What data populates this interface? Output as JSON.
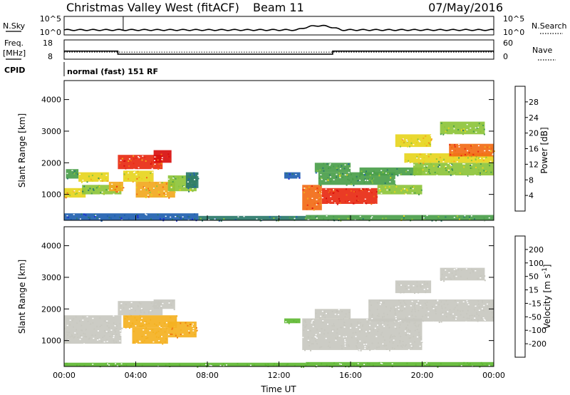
{
  "header": {
    "station": "Christmas Valley West (fitACF)",
    "beam": "Beam 11",
    "date": "07/May/2016"
  },
  "chart_data": [
    {
      "type": "line",
      "panel": "noise",
      "left_label": "N.Sky",
      "right_label": "N.Search",
      "left_ticks": [
        "10^5",
        "10^0"
      ],
      "right_ticks": [
        "10^5",
        "10^0"
      ],
      "series": [
        {
          "name": "N.Sky",
          "style": "solid"
        },
        {
          "name": "N.Search",
          "style": "dotted"
        }
      ]
    },
    {
      "type": "line",
      "panel": "frequency",
      "left_label": [
        "Freq.",
        "[MHz]"
      ],
      "right_label": "Nave",
      "left_ticks": [
        18,
        8
      ],
      "right_ticks": [
        60,
        0
      ],
      "freq_steps": [
        {
          "t": 0,
          "v": 12.2
        },
        {
          "t": 3.0,
          "v": 10.6
        },
        {
          "t": 15.0,
          "v": 12.2
        },
        {
          "t": 24,
          "v": 12.2
        }
      ],
      "nave_steps": [
        {
          "t": 0,
          "v": 22
        },
        {
          "t": 3.0,
          "v": 22
        },
        {
          "t": 15.0,
          "v": 22
        },
        {
          "t": 24,
          "v": 22
        }
      ],
      "series": [
        {
          "name": "Freq.",
          "style": "solid"
        },
        {
          "name": "Nave",
          "style": "dotted"
        }
      ]
    },
    {
      "type": "table",
      "panel": "cpid",
      "label": "CPID",
      "text": "normal (fast) 151 RF"
    },
    {
      "type": "heatmap",
      "panel": "power",
      "ylabel": "Slant Range [km]",
      "yticks": [
        1000,
        2000,
        3000,
        4000
      ],
      "ylim": [
        180,
        4600
      ],
      "colorbar_label": "Power [dB]",
      "colorbar_ticks": [
        4,
        8,
        12,
        16,
        20,
        24,
        28
      ],
      "colorbar_range": [
        0,
        32
      ],
      "colors": [
        "#1a2bd6",
        "#1f5fb0",
        "#2b7a6a",
        "#4a9e4a",
        "#8dc43a",
        "#e7d51e",
        "#f2a81f",
        "#f26b16",
        "#e82a12",
        "#d80e0e"
      ],
      "cells": [
        {
          "t0": 0.0,
          "t1": 1.2,
          "r0": 900,
          "r1": 1200,
          "v": 18
        },
        {
          "t0": 0.1,
          "t1": 0.8,
          "r0": 1500,
          "r1": 1800,
          "v": 12
        },
        {
          "t0": 0.8,
          "t1": 2.5,
          "r0": 1400,
          "r1": 1700,
          "v": 17
        },
        {
          "t0": 1.0,
          "t1": 3.2,
          "r0": 1000,
          "r1": 1300,
          "v": 13
        },
        {
          "t0": 2.5,
          "t1": 3.3,
          "r0": 1100,
          "r1": 1400,
          "v": 22
        },
        {
          "t0": 3.0,
          "t1": 5.5,
          "r0": 1800,
          "r1": 2250,
          "v": 26
        },
        {
          "t0": 3.3,
          "t1": 5.0,
          "r0": 1400,
          "r1": 1750,
          "v": 19
        },
        {
          "t0": 5.0,
          "t1": 6.0,
          "r0": 2000,
          "r1": 2400,
          "v": 29
        },
        {
          "t0": 4.0,
          "t1": 6.2,
          "r0": 900,
          "r1": 1400,
          "v": 20
        },
        {
          "t0": 5.8,
          "t1": 7.4,
          "r0": 1100,
          "r1": 1600,
          "v": 14
        },
        {
          "t0": 6.8,
          "t1": 7.5,
          "r0": 1200,
          "r1": 1700,
          "v": 8
        },
        {
          "t0": 0.0,
          "t1": 7.5,
          "r0": 180,
          "r1": 400,
          "v": 5
        },
        {
          "t0": 7.5,
          "t1": 13.5,
          "r0": 180,
          "r1": 320,
          "v": 9
        },
        {
          "t0": 12.3,
          "t1": 13.2,
          "r0": 1500,
          "r1": 1700,
          "v": 6
        },
        {
          "t0": 13.3,
          "t1": 14.4,
          "r0": 500,
          "r1": 1300,
          "v": 24
        },
        {
          "t0": 14.4,
          "t1": 17.5,
          "r0": 700,
          "r1": 1200,
          "v": 28
        },
        {
          "t0": 14.2,
          "t1": 18.5,
          "r0": 1300,
          "r1": 1700,
          "v": 12
        },
        {
          "t0": 14.0,
          "t1": 16.0,
          "r0": 1700,
          "r1": 2000,
          "v": 11
        },
        {
          "t0": 17.5,
          "t1": 20.0,
          "r0": 1000,
          "r1": 1300,
          "v": 15
        },
        {
          "t0": 16.5,
          "t1": 20.0,
          "r0": 1600,
          "r1": 1850,
          "v": 11
        },
        {
          "t0": 19.5,
          "t1": 24.0,
          "r0": 1600,
          "r1": 2000,
          "v": 14
        },
        {
          "t0": 19.0,
          "t1": 24.0,
          "r0": 2000,
          "r1": 2300,
          "v": 17
        },
        {
          "t0": 21.5,
          "t1": 24.0,
          "r0": 2200,
          "r1": 2600,
          "v": 24
        },
        {
          "t0": 18.5,
          "t1": 20.5,
          "r0": 2500,
          "r1": 2900,
          "v": 18
        },
        {
          "t0": 21.0,
          "t1": 23.5,
          "r0": 2900,
          "r1": 3300,
          "v": 14
        },
        {
          "t0": 13.5,
          "t1": 24.0,
          "r0": 180,
          "r1": 350,
          "v": 12
        }
      ]
    },
    {
      "type": "heatmap",
      "panel": "velocity",
      "ylabel": "Slant Range [km]",
      "yticks": [
        1000,
        2000,
        3000,
        4000
      ],
      "ylim": [
        180,
        4600
      ],
      "xticks": [
        "00:00",
        "04:00",
        "08:00",
        "12:00",
        "16:00",
        "20:00",
        "00:00"
      ],
      "xlabel": "Time UT",
      "colorbar_label": "Velocity [m s^-1]",
      "colorbar_ticks": [
        200,
        100,
        50,
        15,
        -15,
        -50,
        -100,
        -200
      ],
      "colors": [
        "#1a2bd6",
        "#2b4fb5",
        "#2c7f59",
        "#5fb833",
        "#c8c8c0",
        "#f4b121",
        "#f07c13",
        "#e84a10",
        "#d80e0e"
      ],
      "cells": [
        {
          "t0": 0.0,
          "t1": 3.2,
          "r0": 900,
          "r1": 1800,
          "v": 0
        },
        {
          "t0": 3.0,
          "t1": 5.5,
          "r0": 1800,
          "r1": 2250,
          "v": 0
        },
        {
          "t0": 3.3,
          "t1": 6.3,
          "r0": 1400,
          "r1": 1800,
          "v": -40
        },
        {
          "t0": 3.8,
          "t1": 5.8,
          "r0": 900,
          "r1": 1400,
          "v": -30
        },
        {
          "t0": 5.0,
          "t1": 6.2,
          "r0": 2000,
          "r1": 2300,
          "v": 0
        },
        {
          "t0": 5.8,
          "t1": 7.4,
          "r0": 1100,
          "r1": 1600,
          "v": -50
        },
        {
          "t0": 0.0,
          "t1": 13.5,
          "r0": 180,
          "r1": 300,
          "v": 40
        },
        {
          "t0": 12.3,
          "t1": 13.2,
          "r0": 1550,
          "r1": 1700,
          "v": 45
        },
        {
          "t0": 13.3,
          "t1": 20.0,
          "r0": 700,
          "r1": 1700,
          "v": 0
        },
        {
          "t0": 14.0,
          "t1": 16.0,
          "r0": 1700,
          "r1": 2000,
          "v": 0
        },
        {
          "t0": 17.0,
          "t1": 24.0,
          "r0": 1600,
          "r1": 2300,
          "v": 0
        },
        {
          "t0": 18.5,
          "t1": 20.5,
          "r0": 2500,
          "r1": 2900,
          "v": 0
        },
        {
          "t0": 21.0,
          "t1": 23.5,
          "r0": 2900,
          "r1": 3300,
          "v": 0
        },
        {
          "t0": 13.5,
          "t1": 24.0,
          "r0": 180,
          "r1": 320,
          "v": 35
        }
      ]
    }
  ]
}
